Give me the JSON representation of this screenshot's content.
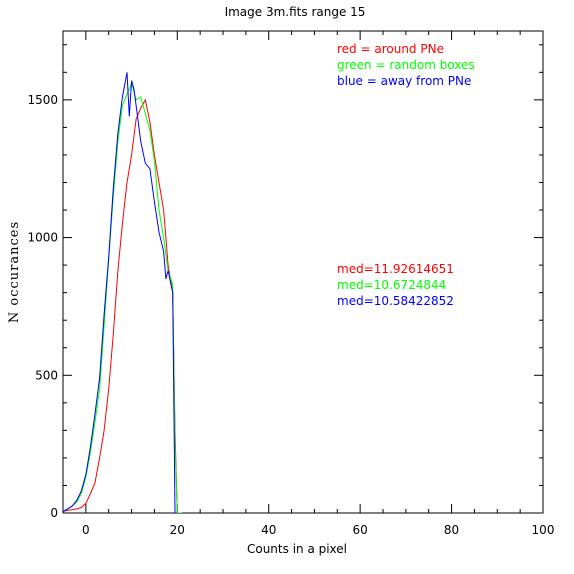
{
  "chart_data": {
    "type": "line",
    "title": "Image 3m.fits   range 15",
    "xlabel": "Counts in a pixel",
    "ylabel": "N  occurances",
    "xlim": [
      -5,
      100
    ],
    "ylim": [
      0,
      1750
    ],
    "xticks": [
      0,
      20,
      40,
      60,
      80,
      100
    ],
    "yticks": [
      0,
      500,
      1000,
      1500
    ],
    "grid": false,
    "legend_position": "top-right",
    "series": [
      {
        "name": "red = around PNe",
        "color": "#ff0000",
        "median_label": "med=11.92614651",
        "x": [
          -5,
          -4,
          -3,
          -2,
          -1,
          0,
          1,
          2,
          3,
          4,
          5,
          6,
          7,
          8,
          9,
          10,
          11,
          12,
          13,
          14,
          15,
          16,
          17,
          18,
          19,
          19.5,
          20,
          20.5,
          21
        ],
        "y": [
          5,
          10,
          12,
          15,
          20,
          35,
          70,
          110,
          200,
          300,
          450,
          650,
          880,
          1050,
          1200,
          1300,
          1430,
          1470,
          1500,
          1420,
          1300,
          1200,
          1100,
          900,
          800,
          300,
          0,
          0,
          0
        ]
      },
      {
        "name": "green = random boxes",
        "color": "#00ff00",
        "median_label": "med=10.6724844",
        "x": [
          -5,
          -4,
          -3,
          -2,
          -1,
          0,
          1,
          2,
          3,
          4,
          5,
          6,
          7,
          8,
          9,
          10,
          11,
          12,
          13,
          14,
          15,
          16,
          17,
          18,
          19,
          19.5,
          20,
          21
        ],
        "y": [
          5,
          15,
          25,
          40,
          70,
          130,
          220,
          330,
          450,
          680,
          920,
          1150,
          1350,
          1480,
          1520,
          1560,
          1500,
          1510,
          1450,
          1390,
          1280,
          1100,
          1000,
          880,
          830,
          250,
          0,
          0
        ]
      },
      {
        "name": "blue = away from PNe",
        "color": "#0000ff",
        "median_label": "med=10.58422852",
        "x": [
          -5,
          -4,
          -3,
          -2,
          -1,
          0,
          1,
          2,
          3,
          4,
          5,
          6,
          7,
          8,
          9,
          9.5,
          10,
          10.5,
          11,
          12,
          13,
          14,
          15,
          16,
          17,
          17.5,
          18,
          19,
          19.5,
          20
        ],
        "y": [
          5,
          15,
          25,
          45,
          80,
          140,
          240,
          360,
          490,
          720,
          930,
          1180,
          1380,
          1510,
          1600,
          1440,
          1570,
          1540,
          1480,
          1350,
          1270,
          1250,
          1130,
          1020,
          950,
          850,
          880,
          800,
          0,
          0
        ]
      }
    ]
  }
}
